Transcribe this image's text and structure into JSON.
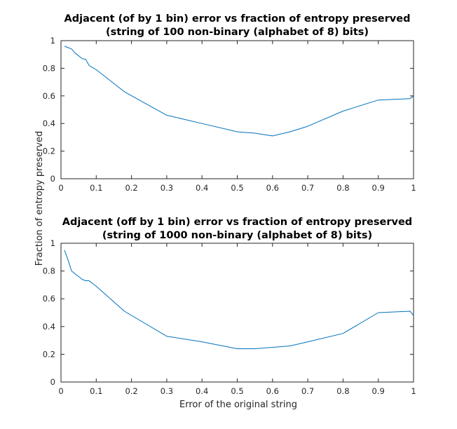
{
  "figure": {
    "ylabel": "Fraction of entropy preserved",
    "xlabel": "Error of the original string"
  },
  "chart_data": [
    {
      "type": "line",
      "title": "Adjacent (of by 1 bin) error vs fraction of entropy preserved",
      "subtitle": "(string of 100 non-binary (alphabet of 8) bits)",
      "xlim": [
        0,
        1
      ],
      "ylim": [
        0,
        1
      ],
      "xticks": [
        "0",
        "0.1",
        "0.2",
        "0.3",
        "0.4",
        "0.5",
        "0.6",
        "0.7",
        "0.8",
        "0.9",
        "1"
      ],
      "yticks": [
        "0",
        "0.2",
        "0.4",
        "0.6",
        "0.8",
        "1"
      ],
      "grid": false,
      "color": "#0072BD",
      "x": [
        0.01,
        0.02,
        0.03,
        0.04,
        0.05,
        0.06,
        0.07,
        0.08,
        0.1,
        0.18,
        0.3,
        0.4,
        0.5,
        0.55,
        0.6,
        0.65,
        0.7,
        0.8,
        0.9,
        0.99,
        1.0
      ],
      "y": [
        0.96,
        0.95,
        0.94,
        0.91,
        0.89,
        0.87,
        0.865,
        0.82,
        0.79,
        0.63,
        0.46,
        0.4,
        0.34,
        0.33,
        0.31,
        0.34,
        0.38,
        0.49,
        0.57,
        0.58,
        0.6
      ]
    },
    {
      "type": "line",
      "title": "Adjacent (off by 1 bin) error vs fraction of entropy preserved",
      "subtitle": "(string of 1000 non-binary (alphabet of 8) bits)",
      "xlim": [
        0,
        1
      ],
      "ylim": [
        0,
        1
      ],
      "xticks": [
        "0",
        "0.1",
        "0.2",
        "0.3",
        "0.4",
        "0.5",
        "0.6",
        "0.7",
        "0.8",
        "0.9",
        "1"
      ],
      "yticks": [
        "0",
        "0.2",
        "0.4",
        "0.6",
        "0.8",
        "1"
      ],
      "grid": false,
      "color": "#0072BD",
      "x": [
        0.01,
        0.02,
        0.03,
        0.04,
        0.05,
        0.06,
        0.07,
        0.08,
        0.1,
        0.18,
        0.3,
        0.4,
        0.5,
        0.55,
        0.6,
        0.65,
        0.7,
        0.8,
        0.9,
        0.99,
        1.0
      ],
      "y": [
        0.95,
        0.88,
        0.8,
        0.78,
        0.76,
        0.74,
        0.73,
        0.73,
        0.69,
        0.51,
        0.33,
        0.29,
        0.24,
        0.24,
        0.25,
        0.26,
        0.29,
        0.35,
        0.5,
        0.51,
        0.48
      ]
    }
  ]
}
